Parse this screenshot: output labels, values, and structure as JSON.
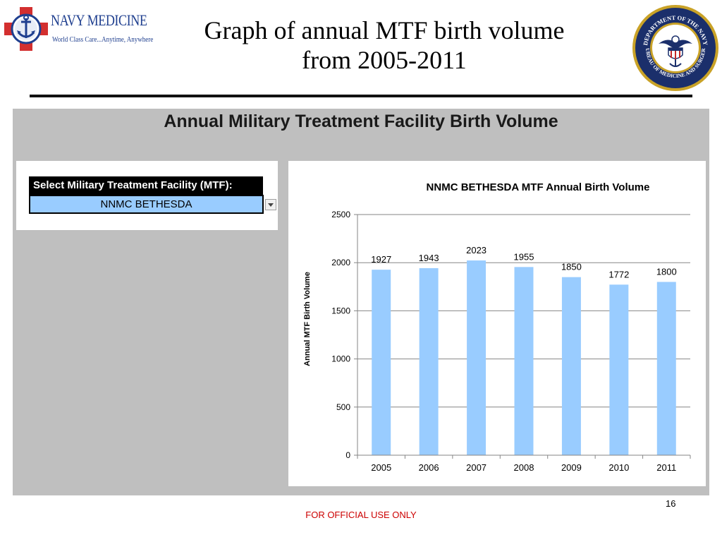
{
  "header": {
    "brand": "NAVY MEDICINE",
    "tagline": "World Class Care...Anytime, Anywhere",
    "title_line1": "Graph of annual MTF birth volume",
    "title_line2": "from 2005-2011"
  },
  "seal": {
    "text_top": "DEPARTMENT OF THE NAVY",
    "text_bottom": "BUREAU OF MEDICINE AND SURGERY"
  },
  "dashboard": {
    "title": "Annual Military Treatment Facility Birth Volume",
    "selector_label": "Select Military Treatment Facility (MTF):",
    "selected_mtf": "NNMC BETHESDA"
  },
  "chart_data": {
    "type": "bar",
    "title": "NNMC BETHESDA  MTF Annual Birth Volume",
    "xlabel": "",
    "ylabel": "Annual MTF Birth Volume",
    "categories": [
      "2005",
      "2006",
      "2007",
      "2008",
      "2009",
      "2010",
      "2011"
    ],
    "values": [
      1927,
      1943,
      2023,
      1955,
      1850,
      1772,
      1800
    ],
    "ylim": [
      0,
      2500
    ],
    "yticks": [
      0,
      500,
      1000,
      1500,
      2000,
      2500
    ],
    "grid": true,
    "bar_color": "#99ccff",
    "data_labels": true
  },
  "footer": {
    "classification": "FOR OFFICIAL USE ONLY",
    "page_number": "16"
  }
}
